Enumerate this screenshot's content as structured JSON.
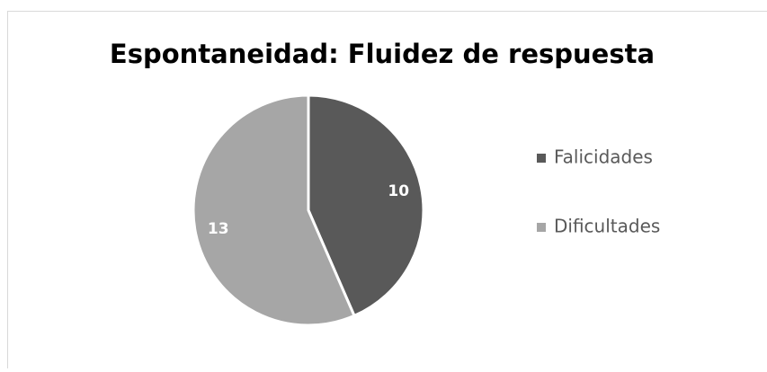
{
  "chart_data": {
    "type": "pie",
    "title": "Espontaneidad: Fluidez de respuesta",
    "categories": [
      "Falicidades",
      "Dificultades"
    ],
    "values": [
      10,
      13
    ],
    "colors": [
      "#595959",
      "#a6a6a6"
    ],
    "legend": "right"
  }
}
